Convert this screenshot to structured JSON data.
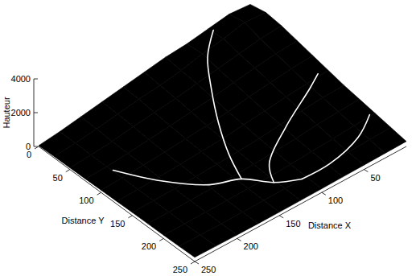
{
  "chart_data": {
    "type": "surface",
    "xlabel": "Distance X",
    "ylabel": "Distance Y",
    "zlabel": "Hauteur",
    "xlim": [
      0,
      250
    ],
    "ylim": [
      0,
      250
    ],
    "zlim": [
      0,
      4000
    ],
    "xticks": [
      50,
      100,
      150,
      200,
      250
    ],
    "yticks": [
      0,
      50,
      100,
      150,
      200,
      250
    ],
    "zticks": [
      0,
      2000,
      4000
    ],
    "color": "#000000",
    "x": [
      0,
      25,
      50,
      75,
      100,
      125,
      150,
      175,
      200,
      225,
      250
    ],
    "y": [
      0,
      25,
      50,
      75,
      100,
      125,
      150,
      175,
      200,
      225,
      250
    ],
    "z": [
      [
        1600,
        1700,
        1500,
        1300,
        1200,
        1000,
        800,
        600,
        400,
        200,
        50
      ],
      [
        1800,
        1900,
        1600,
        1400,
        1100,
        900,
        750,
        550,
        350,
        200,
        80
      ],
      [
        1700,
        1600,
        1400,
        1200,
        1000,
        800,
        650,
        500,
        300,
        180,
        100
      ],
      [
        1500,
        1400,
        1250,
        1050,
        850,
        700,
        550,
        400,
        280,
        170,
        120
      ],
      [
        1300,
        1200,
        1050,
        900,
        700,
        550,
        450,
        350,
        250,
        180,
        140
      ],
      [
        1100,
        1000,
        900,
        750,
        600,
        450,
        380,
        300,
        230,
        190,
        160
      ],
      [
        900,
        850,
        750,
        600,
        480,
        380,
        320,
        260,
        220,
        200,
        180
      ],
      [
        750,
        700,
        600,
        480,
        380,
        300,
        260,
        230,
        210,
        200,
        190
      ],
      [
        600,
        550,
        450,
        380,
        300,
        250,
        230,
        210,
        200,
        200,
        200
      ],
      [
        450,
        400,
        350,
        300,
        260,
        230,
        210,
        200,
        200,
        210,
        220
      ],
      [
        300,
        280,
        260,
        240,
        220,
        210,
        200,
        200,
        210,
        230,
        250
      ]
    ],
    "rivers": [
      [
        [
          224,
          84
        ],
        [
          202,
          131
        ],
        [
          173,
          169
        ],
        [
          146,
          184
        ],
        [
          127,
          210
        ],
        [
          105,
          225
        ]
      ],
      [
        [
          146,
          184
        ],
        [
          134,
          148
        ],
        [
          115,
          105
        ],
        [
          94,
          65
        ],
        [
          74,
          32
        ],
        [
          48,
          6
        ]
      ],
      [
        [
          127,
          210
        ],
        [
          114,
          185
        ],
        [
          73,
          156
        ],
        [
          27,
          132
        ],
        [
          10,
          122
        ]
      ],
      [
        [
          105,
          225
        ],
        [
          73,
          226
        ],
        [
          31,
          215
        ],
        [
          5,
          198
        ]
      ]
    ]
  }
}
